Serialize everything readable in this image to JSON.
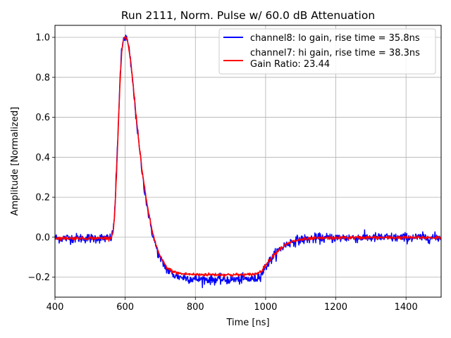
{
  "chart_data": {
    "type": "line",
    "title": "Run 2111, Norm. Pulse w/ 60.0 dB Attenuation",
    "xlabel": "Time [ns]",
    "ylabel": "Amplitude [Normalized]",
    "xlim": [
      400,
      1500
    ],
    "ylim": [
      -0.3,
      1.06
    ],
    "xticks": [
      400,
      600,
      800,
      1000,
      1200,
      1400
    ],
    "yticks": [
      -0.2,
      0.0,
      0.2,
      0.4,
      0.6,
      0.8,
      1.0
    ],
    "xtick_labels": [
      "400",
      "600",
      "800",
      "1000",
      "1200",
      "1400"
    ],
    "ytick_labels": [
      "−0.2",
      "0.0",
      "0.2",
      "0.4",
      "0.6",
      "0.8",
      "1.0"
    ],
    "grid": true,
    "legend_position": "top-right",
    "series": [
      {
        "name": "channel8: lo gain, rise time = 35.8ns",
        "color": "#0000ff",
        "noise": 0.012,
        "x": [
          400,
          550,
          560,
          565,
          570,
          575,
          580,
          585,
          590,
          595,
          600,
          605,
          610,
          615,
          620,
          625,
          630,
          640,
          650,
          660,
          670,
          680,
          690,
          700,
          720,
          740,
          760,
          800,
          850,
          900,
          950,
          975,
          990,
          1000,
          1020,
          1040,
          1060,
          1080,
          1100,
          1150,
          1200,
          1300,
          1400,
          1500
        ],
        "values": [
          -0.005,
          -0.005,
          -0.003,
          0.02,
          0.12,
          0.32,
          0.55,
          0.78,
          0.93,
          0.99,
          1.0,
          0.99,
          0.95,
          0.88,
          0.8,
          0.71,
          0.62,
          0.45,
          0.3,
          0.18,
          0.08,
          0.0,
          -0.06,
          -0.11,
          -0.165,
          -0.19,
          -0.2,
          -0.21,
          -0.212,
          -0.212,
          -0.21,
          -0.205,
          -0.18,
          -0.15,
          -0.1,
          -0.06,
          -0.035,
          -0.02,
          -0.012,
          -0.005,
          -0.003,
          -0.002,
          -0.002,
          -0.002
        ]
      },
      {
        "name": "channel7: hi gain, rise time = 38.3ns",
        "subtitle": "Gain Ratio: 23.44",
        "color": "#ff0000",
        "noise": 0.004,
        "x": [
          400,
          550,
          560,
          565,
          570,
          575,
          580,
          585,
          590,
          595,
          600,
          605,
          610,
          615,
          620,
          625,
          630,
          640,
          650,
          660,
          670,
          680,
          690,
          700,
          720,
          740,
          760,
          800,
          850,
          900,
          950,
          975,
          990,
          1000,
          1020,
          1040,
          1060,
          1080,
          1100,
          1150,
          1200,
          1300,
          1400,
          1500
        ],
        "values": [
          -0.005,
          -0.005,
          -0.003,
          0.02,
          0.11,
          0.3,
          0.53,
          0.76,
          0.92,
          0.99,
          1.0,
          0.99,
          0.95,
          0.89,
          0.81,
          0.72,
          0.63,
          0.46,
          0.31,
          0.19,
          0.09,
          0.01,
          -0.05,
          -0.1,
          -0.155,
          -0.175,
          -0.183,
          -0.187,
          -0.187,
          -0.188,
          -0.188,
          -0.183,
          -0.165,
          -0.14,
          -0.095,
          -0.06,
          -0.035,
          -0.02,
          -0.012,
          -0.005,
          -0.003,
          -0.002,
          -0.002,
          -0.002
        ]
      }
    ]
  }
}
